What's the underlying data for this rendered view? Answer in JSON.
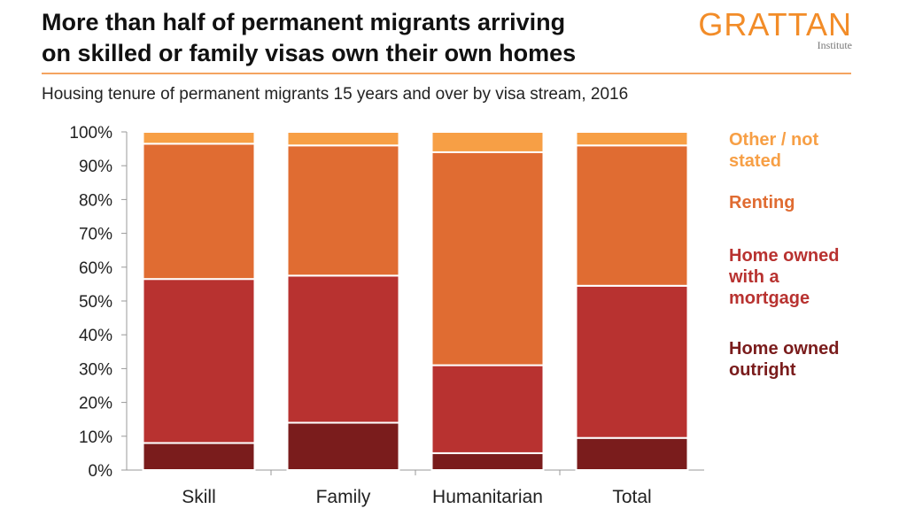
{
  "title_lines": [
    "More than half of permanent migrants arriving",
    "on skilled or family visas own their own homes"
  ],
  "logo": {
    "word": "GRATTAN",
    "sub": "Institute"
  },
  "subtitle": "Housing tenure of permanent migrants 15 years and over by visa stream, 2016",
  "legend": [
    {
      "lines": [
        "Other / not",
        "stated"
      ],
      "color": "#f79f45"
    },
    {
      "lines": [
        "Renting"
      ],
      "color": "#e06c32"
    },
    {
      "lines": [
        "Home owned",
        "with a",
        "mortgage"
      ],
      "color": "#b83230"
    },
    {
      "lines": [
        "Home owned",
        "outright"
      ],
      "color": "#7a1c1c"
    }
  ],
  "chart_data": {
    "type": "bar",
    "stacked": true,
    "categories": [
      "Skill",
      "Family",
      "Humanitarian",
      "Total"
    ],
    "ylim": [
      0,
      100
    ],
    "yticks": [
      "0%",
      "10%",
      "20%",
      "30%",
      "40%",
      "50%",
      "60%",
      "70%",
      "80%",
      "90%",
      "100%"
    ],
    "series": [
      {
        "name": "Home owned outright",
        "color": "#7a1c1c",
        "values": [
          8,
          14,
          5,
          9.5
        ]
      },
      {
        "name": "Home owned with a mortgage",
        "color": "#b83230",
        "values": [
          48.5,
          43.5,
          26,
          45
        ]
      },
      {
        "name": "Renting",
        "color": "#e06c32",
        "values": [
          40,
          38.5,
          63,
          41.5
        ]
      },
      {
        "name": "Other / not stated",
        "color": "#f79f45",
        "values": [
          3.5,
          4,
          6,
          4
        ]
      }
    ]
  }
}
